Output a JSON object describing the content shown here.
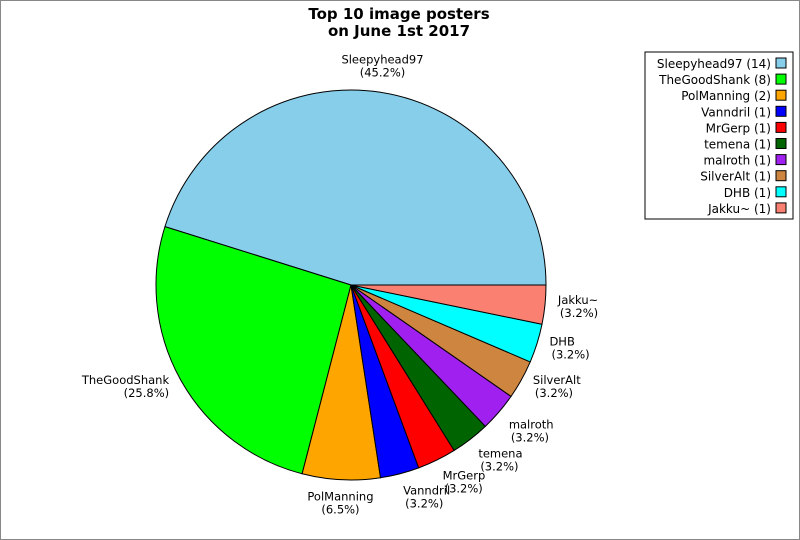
{
  "chart_data": {
    "type": "pie",
    "title": [
      "Top 10 image posters",
      "on June 1st 2017"
    ],
    "legend_position": "top-right",
    "slices": [
      {
        "label": "Sleepyhead97",
        "count": 14,
        "percent_label": "(45.2%)",
        "legend": "Sleepyhead97 (14)",
        "color": "#87ceeb"
      },
      {
        "label": "TheGoodShank",
        "count": 8,
        "percent_label": "(25.8%)",
        "legend": "TheGoodShank (8)",
        "color": "#00ff00"
      },
      {
        "label": "PolManning",
        "count": 2,
        "percent_label": "(6.5%)",
        "legend": "PolManning (2)",
        "color": "#ffa500"
      },
      {
        "label": "Vanndril",
        "count": 1,
        "percent_label": "(3.2%)",
        "legend": "Vanndril (1)",
        "color": "#0000ff"
      },
      {
        "label": "MrGerp",
        "count": 1,
        "percent_label": "(3.2%)",
        "legend": "MrGerp (1)",
        "color": "#ff0000"
      },
      {
        "label": "temena",
        "count": 1,
        "percent_label": "(3.2%)",
        "legend": "temena (1)",
        "color": "#006400"
      },
      {
        "label": "malroth",
        "count": 1,
        "percent_label": "(3.2%)",
        "legend": "malroth (1)",
        "color": "#a020f0"
      },
      {
        "label": "SilverAlt",
        "count": 1,
        "percent_label": "(3.2%)",
        "legend": "SilverAlt (1)",
        "color": "#cd853f"
      },
      {
        "label": "DHB",
        "count": 1,
        "percent_label": "(3.2%)",
        "legend": "DHB (1)",
        "color": "#00ffff"
      },
      {
        "label": "Jakku~",
        "count": 1,
        "percent_label": "(3.2%)",
        "legend": "Jakku~ (1)",
        "color": "#fa8072"
      }
    ]
  }
}
